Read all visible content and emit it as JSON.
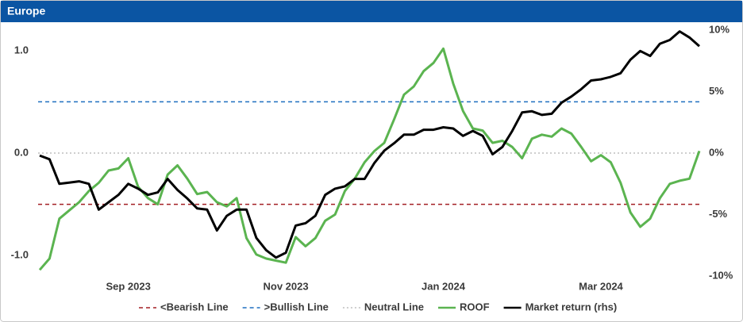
{
  "chart_data": {
    "type": "line",
    "title": "Europe",
    "categories": [
      null,
      null,
      null,
      null,
      null,
      null,
      null,
      null,
      null,
      "Sep 2023",
      null,
      null,
      null,
      null,
      null,
      null,
      null,
      null,
      null,
      null,
      null,
      null,
      null,
      null,
      null,
      "Nov 2023",
      null,
      null,
      null,
      null,
      null,
      null,
      null,
      null,
      null,
      null,
      null,
      null,
      null,
      null,
      null,
      "Jan 2024",
      null,
      null,
      null,
      null,
      null,
      null,
      null,
      null,
      null,
      null,
      null,
      null,
      null,
      null,
      null,
      "Mar 2024",
      null,
      null,
      null,
      null,
      null,
      null,
      null,
      null,
      null,
      null
    ],
    "ylim": [
      -1.2,
      1.2
    ],
    "yticks": [
      {
        "value": -1,
        "label": "-1.0"
      },
      {
        "value": 0,
        "label": "0.0"
      },
      {
        "value": 1,
        "label": "1.0"
      }
    ],
    "y2lim": [
      -10,
      10
    ],
    "y2ticks": [
      {
        "value": -10,
        "label": "-10%"
      },
      {
        "value": -5,
        "label": "-5%"
      },
      {
        "value": 0,
        "label": "0%"
      },
      {
        "value": 5,
        "label": "5%"
      },
      {
        "value": 10,
        "label": "10%"
      }
    ],
    "reference_lines": [
      {
        "name": "<Bearish Line",
        "value": -0.5,
        "color": "#a31f24",
        "dash": "5,4"
      },
      {
        "name": ">Bullish Line",
        "value": 0.5,
        "color": "#1f6fc0",
        "dash": "5,4"
      },
      {
        "name": "Neutral Line",
        "value": 0,
        "color": "#bdbdbd",
        "dash": "2,3"
      }
    ],
    "series": [
      {
        "name": "ROOF",
        "color": "#5bb450",
        "values": [
          -1.14,
          -1.03,
          -0.64,
          -0.56,
          -0.48,
          -0.37,
          -0.29,
          -0.17,
          -0.15,
          -0.05,
          -0.33,
          -0.44,
          -0.5,
          -0.21,
          -0.12,
          -0.25,
          -0.4,
          -0.38,
          -0.48,
          -0.52,
          -0.44,
          -0.83,
          -0.99,
          -1.03,
          -1.05,
          -1.07,
          -0.82,
          -0.91,
          -0.83,
          -0.66,
          -0.6,
          -0.37,
          -0.25,
          -0.09,
          0.02,
          0.1,
          0.33,
          0.57,
          0.65,
          0.8,
          0.88,
          1.02,
          0.68,
          0.41,
          0.24,
          0.22,
          0.1,
          0.12,
          0.06,
          -0.05,
          0.14,
          0.18,
          0.16,
          0.24,
          0.19,
          0.06,
          -0.08,
          -0.02,
          -0.09,
          -0.29,
          -0.58,
          -0.72,
          -0.64,
          -0.44,
          -0.3,
          -0.27,
          -0.25,
          0.02
        ]
      },
      {
        "name": "Market return (rhs)",
        "color": "#000000",
        "axis": "y2",
        "values": [
          -0.2,
          -0.5,
          -2.5,
          -2.4,
          -2.3,
          -2.5,
          -4.6,
          -4.0,
          -3.4,
          -2.5,
          -2.9,
          -3.4,
          -3.2,
          -2.1,
          -3.0,
          -3.7,
          -4.5,
          -4.6,
          -6.3,
          -5.1,
          -4.6,
          -4.6,
          -6.9,
          -7.9,
          -8.5,
          -8.1,
          -5.9,
          -5.7,
          -5.1,
          -3.4,
          -2.9,
          -2.7,
          -2.1,
          -2.1,
          -0.8,
          0.2,
          0.8,
          1.5,
          1.5,
          1.9,
          1.9,
          2.1,
          2.0,
          1.4,
          1.8,
          1.4,
          -0.1,
          0.5,
          1.8,
          3.3,
          3.4,
          3.1,
          3.2,
          4.1,
          4.6,
          5.2,
          5.9,
          6.0,
          6.2,
          6.5,
          7.6,
          8.3,
          7.9,
          8.9,
          9.2,
          9.9,
          9.4,
          8.7
        ]
      }
    ]
  }
}
